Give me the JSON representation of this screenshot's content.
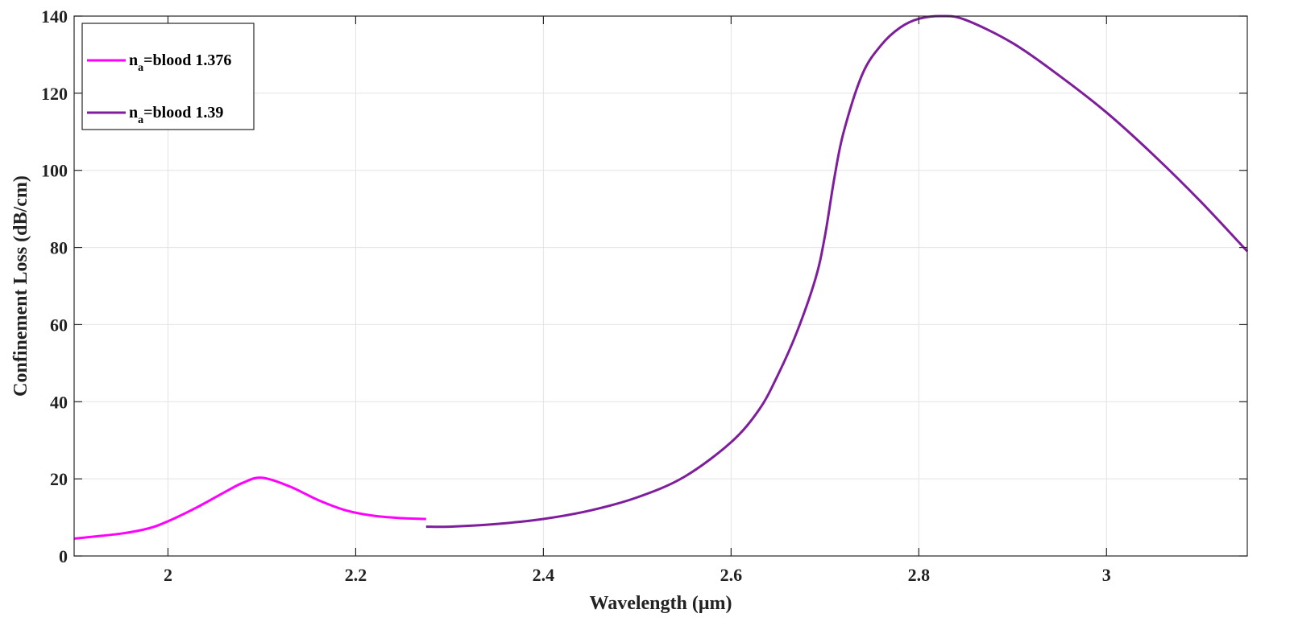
{
  "chart_data": {
    "type": "line",
    "xlabel": "Wavelength (μm)",
    "ylabel": "Confinement Loss (dB/cm)",
    "xlim": [
      1.9,
      3.15
    ],
    "ylim": [
      0,
      140
    ],
    "x_ticks": [
      2,
      2.2,
      2.4,
      2.6,
      2.8,
      3
    ],
    "x_tick_labels": [
      "2",
      "2.2",
      "2.4",
      "2.6",
      "2.8",
      "3"
    ],
    "y_ticks": [
      0,
      20,
      40,
      60,
      80,
      100,
      120,
      140
    ],
    "y_tick_labels": [
      "0",
      "20",
      "40",
      "60",
      "80",
      "100",
      "120",
      "140"
    ],
    "grid": true,
    "legend_placement": "top-left",
    "series": [
      {
        "name": "n_a=blood 1.376",
        "legend_main": "n",
        "legend_sub": "a",
        "legend_rest": "=blood 1.376",
        "color": "#ff00ff",
        "x": [
          1.9,
          1.95,
          1.98,
          2.0,
          2.03,
          2.06,
          2.08,
          2.1,
          2.13,
          2.16,
          2.19,
          2.22,
          2.25,
          2.275
        ],
        "y": [
          4.5,
          5.8,
          7.2,
          9.0,
          12.5,
          16.5,
          19.0,
          20.3,
          18.0,
          14.5,
          11.8,
          10.4,
          9.8,
          9.6
        ]
      },
      {
        "name": "n_a=blood 1.39",
        "legend_main": "n",
        "legend_sub": "a",
        "legend_rest": "=blood 1.39",
        "color": "#7e1e9c",
        "x": [
          2.275,
          2.3,
          2.35,
          2.4,
          2.45,
          2.5,
          2.55,
          2.6,
          2.63,
          2.65,
          2.67,
          2.69,
          2.7,
          2.71,
          2.72,
          2.74,
          2.76,
          2.78,
          2.8,
          2.825,
          2.85,
          2.9,
          2.95,
          3.0,
          3.05,
          3.1,
          3.15
        ],
        "y": [
          7.6,
          7.6,
          8.3,
          9.6,
          11.8,
          15.2,
          20.5,
          29.5,
          38.0,
          47.0,
          58.0,
          72.0,
          83.0,
          98.0,
          110.0,
          125.0,
          132.5,
          137.0,
          139.3,
          140.0,
          139.0,
          133.0,
          124.5,
          115.0,
          104.0,
          92.0,
          79.0
        ]
      }
    ]
  }
}
